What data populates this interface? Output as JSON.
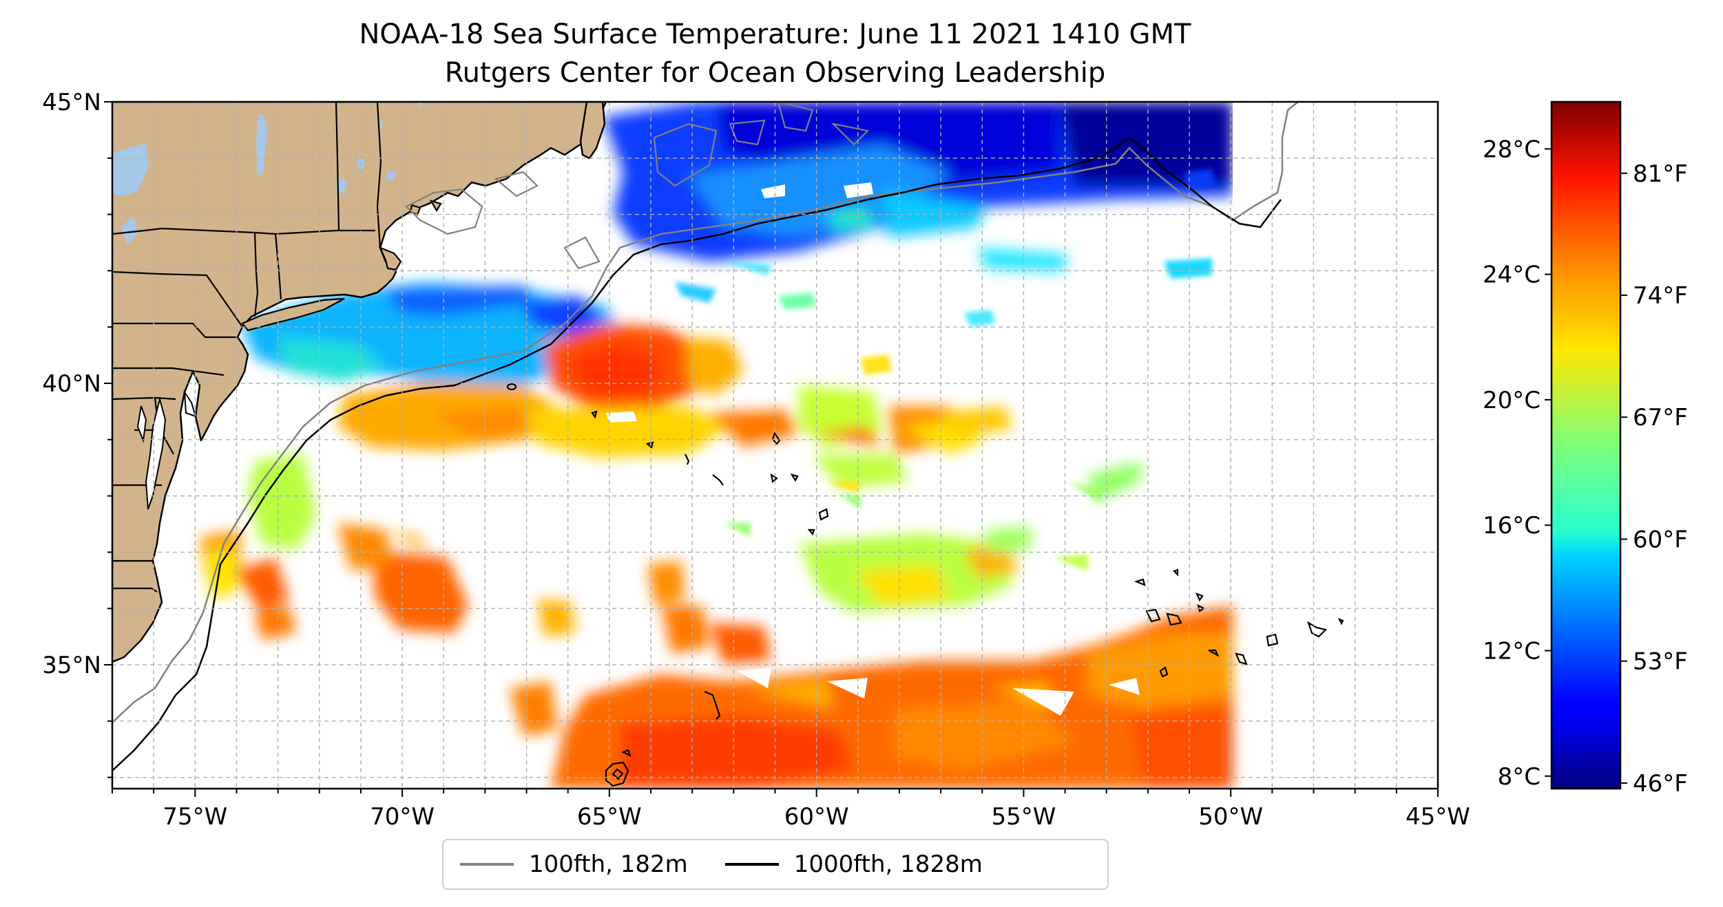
{
  "title": {
    "line1": "NOAA-18 Sea Surface Temperature: June 11 2021 1410 GMT",
    "line2": "Rutgers Center for Ocean Observing Leadership"
  },
  "map": {
    "lon_range": [
      -77,
      -45
    ],
    "lat_range": [
      32.8,
      45
    ],
    "lon_ticks": [
      {
        "value": -75,
        "label": "75°W"
      },
      {
        "value": -70,
        "label": "70°W"
      },
      {
        "value": -65,
        "label": "65°W"
      },
      {
        "value": -60,
        "label": "60°W"
      },
      {
        "value": -55,
        "label": "55°W"
      },
      {
        "value": -50,
        "label": "50°W"
      },
      {
        "value": -45,
        "label": "45°W"
      }
    ],
    "lat_ticks": [
      {
        "value": 45,
        "label": "45°N"
      },
      {
        "value": 40,
        "label": "40°N"
      },
      {
        "value": 35,
        "label": "35°N"
      }
    ],
    "gridlines": "dashed, every 1°",
    "colors": {
      "land": "#d2b48c",
      "lakes": "#a6c8e8",
      "no_data": "#ffffff",
      "coastline": "#000000",
      "isobath_100fth": "#808080",
      "isobath_1000fth": "#000000"
    }
  },
  "colorbar": {
    "colormap": "jet",
    "celsius_range": [
      7.6,
      29.5
    ],
    "celsius_ticks": [
      {
        "value": 28,
        "label": "28°C"
      },
      {
        "value": 24,
        "label": "24°C"
      },
      {
        "value": 20,
        "label": "20°C"
      },
      {
        "value": 16,
        "label": "16°C"
      },
      {
        "value": 12,
        "label": "12°C"
      },
      {
        "value": 8,
        "label": "8°C"
      }
    ],
    "fahrenheit_ticks": [
      {
        "value": 81,
        "label": "81°F"
      },
      {
        "value": 74,
        "label": "74°F"
      },
      {
        "value": 67,
        "label": "67°F"
      },
      {
        "value": 60,
        "label": "60°F"
      },
      {
        "value": 53,
        "label": "53°F"
      },
      {
        "value": 46,
        "label": "46°F"
      }
    ]
  },
  "legend": {
    "items": [
      {
        "label": "100fth, 182m",
        "color": "#808080"
      },
      {
        "label": "1000fth, 1828m",
        "color": "#000000"
      }
    ]
  }
}
